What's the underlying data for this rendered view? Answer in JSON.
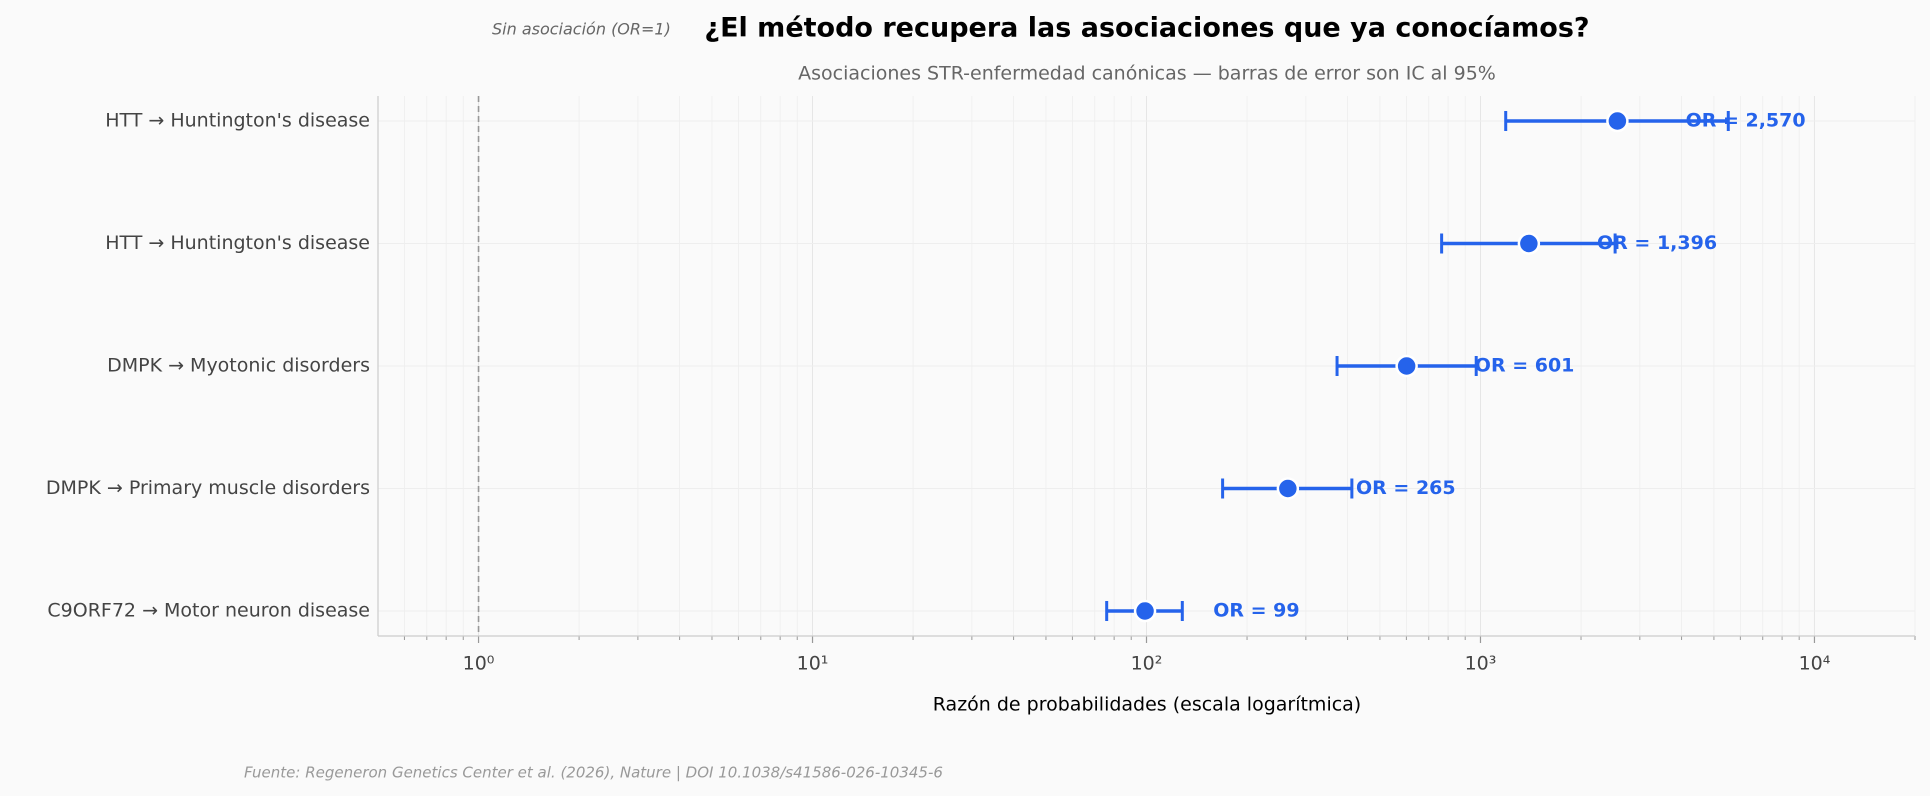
{
  "chart_data": {
    "type": "forest",
    "title": "¿El método recupera las asociaciones que ya conocíamos?",
    "subtitle": "Asociaciones STR-enfermedad canónicas — barras de error son IC al 95%",
    "xlabel": "Razón de probabilidades (escala logarítmica)",
    "annotation": "Sin asociación (OR=1)",
    "source": "Fuente: Regeneron Genetics Center et al. (2026), Nature | DOI 10.1038/s41586-026-10345-6",
    "categories": [
      "HTT → Huntington's disease",
      "HTT → Huntington's disease",
      "DMPK → Myotonic disorders",
      "DMPK → Primary muscle disorders",
      "C9ORF72 → Motor neuron disease"
    ],
    "values": [
      2570,
      1396,
      601,
      265,
      99
    ],
    "value_labels": [
      "OR = 2,570",
      "OR = 1,396",
      "OR = 601",
      "OR = 265",
      "OR = 99"
    ],
    "ci_low": [
      1190,
      765,
      372,
      169,
      76
    ],
    "ci_high": [
      5520,
      2530,
      971,
      412,
      128
    ],
    "color": "#2563eb",
    "ref_line": 1,
    "xscale": "log",
    "xlim": [
      0.5,
      20000
    ],
    "xticks": [
      {
        "value": 1,
        "label": "10⁰"
      },
      {
        "value": 10,
        "label": "10¹"
      },
      {
        "value": 100,
        "label": "10²"
      },
      {
        "value": 1000,
        "label": "10³"
      },
      {
        "value": 10000,
        "label": "10⁴"
      }
    ],
    "xminorticks": [
      0.6,
      0.7,
      0.8,
      0.9,
      2,
      3,
      4,
      5,
      6,
      7,
      8,
      9,
      20,
      30,
      40,
      50,
      60,
      70,
      80,
      90,
      200,
      300,
      400,
      500,
      600,
      700,
      800,
      900,
      2000,
      3000,
      4000,
      5000,
      6000,
      7000,
      8000,
      9000,
      20000
    ],
    "grid": true
  }
}
